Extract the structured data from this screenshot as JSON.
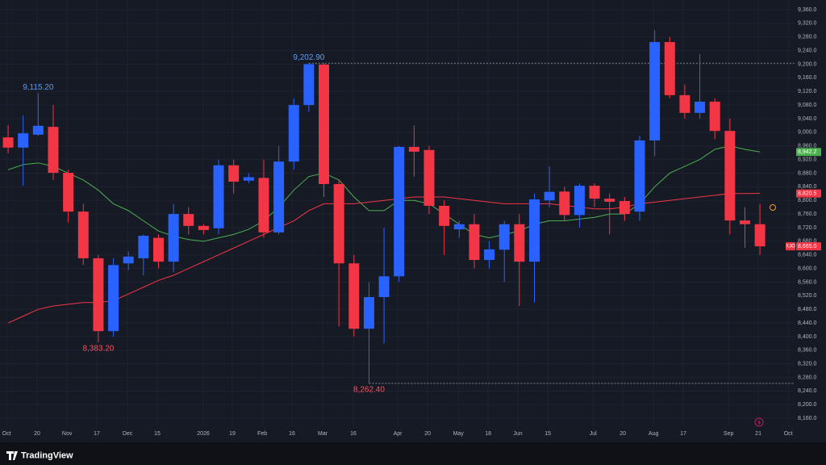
{
  "chart_data": {
    "type": "candlestick",
    "symbol": "XJO",
    "branding": "TradingView",
    "up_color": "#2962ff",
    "down_color": "#f23645",
    "grid": true,
    "x": [
      0,
      1,
      2,
      3,
      4,
      5,
      6,
      7,
      8,
      9,
      10,
      11,
      12,
      13,
      14,
      15,
      16,
      17,
      18,
      19,
      20,
      21,
      22,
      23,
      24,
      25,
      26,
      27,
      28,
      29,
      30,
      31,
      32,
      33,
      34,
      35,
      36,
      37,
      38,
      39,
      40,
      41,
      42,
      43,
      44,
      45,
      46,
      47,
      48,
      49,
      50
    ],
    "open": [
      8985,
      8955,
      8993,
      9016,
      8881,
      8767,
      8630,
      8416,
      8615,
      8630,
      8690,
      8620,
      8760,
      8725,
      8718,
      8903,
      8858,
      8866,
      8706,
      8914,
      9080,
      9199,
      8848,
      8615,
      8423,
      8516,
      8577,
      8957,
      8948,
      8784,
      8715,
      8730,
      8625,
      8655,
      8730,
      8620,
      8800,
      8826,
      8757,
      8843,
      8805,
      8798,
      8767,
      8976,
      9265,
      9109,
      9057,
      9090,
      9004,
      8741,
      8730
    ],
    "high": [
      9021,
      9050,
      9115.2,
      9080,
      8890,
      8790,
      8640,
      8630,
      8650,
      8700,
      8700,
      8790,
      8780,
      8730,
      8920,
      8920,
      8880,
      8920,
      8960,
      9100,
      9202.9,
      9202.9,
      8860,
      8640,
      8560,
      8720,
      8960,
      9020,
      8960,
      8800,
      8740,
      8760,
      8680,
      8740,
      8760,
      8820,
      8900,
      8840,
      8850,
      8850,
      8820,
      8810,
      8990,
      9300,
      9280,
      9140,
      9230,
      9100,
      9040,
      8780,
      8790
    ],
    "low": [
      8938,
      8843,
      8990,
      8860,
      8735,
      8610,
      8383.2,
      8400,
      8595,
      8580,
      8600,
      8590,
      8700,
      8700,
      8700,
      8820,
      8850,
      8690,
      8700,
      8890,
      9060,
      8810,
      8430,
      8400,
      8262.4,
      8380,
      8560,
      8870,
      8760,
      8640,
      8690,
      8600,
      8600,
      8560,
      8490,
      8500,
      8780,
      8740,
      8720,
      8780,
      8700,
      8740,
      8740,
      8930,
      9100,
      9040,
      9040,
      8980,
      8700,
      8660,
      8640
    ],
    "close": [
      8955,
      8997,
      9019,
      8881,
      8767,
      8630,
      8416,
      8610,
      8635,
      8696,
      8620,
      8760,
      8725,
      8713,
      8903,
      8855,
      8868,
      8706,
      8914,
      9080,
      9200,
      8848,
      8615,
      8423,
      8516,
      8577,
      8957,
      8943,
      8784,
      8725,
      8730,
      8625,
      8656,
      8730,
      8620,
      8803,
      8825,
      8757,
      8843,
      8805,
      8796,
      8760,
      8976,
      9265,
      9109,
      9057,
      9090,
      9004,
      8741,
      8730,
      8665
    ],
    "close_label": "8,665.0",
    "lines": [
      {
        "color": "#4caf50",
        "last_label": "8,942.2",
        "values": [
          8890,
          8905,
          8910,
          8900,
          8880,
          8860,
          8830,
          8790,
          8770,
          8740,
          8710,
          8695,
          8685,
          8680,
          8690,
          8700,
          8715,
          8740,
          8780,
          8830,
          8870,
          8880,
          8860,
          8810,
          8770,
          8770,
          8800,
          8800,
          8790,
          8760,
          8730,
          8700,
          8690,
          8700,
          8710,
          8730,
          8740,
          8740,
          8745,
          8750,
          8760,
          8760,
          8790,
          8840,
          8880,
          8900,
          8920,
          8950,
          8960,
          8950,
          8942.2
        ]
      },
      {
        "color": "#f23645",
        "last_label": "8,820.5",
        "values": [
          8440,
          8460,
          8480,
          8490,
          8495,
          8500,
          8500,
          8505,
          8525,
          8545,
          8565,
          8580,
          8600,
          8620,
          8640,
          8660,
          8680,
          8700,
          8720,
          8740,
          8770,
          8790,
          8790,
          8790,
          8795,
          8800,
          8805,
          8810,
          8810,
          8810,
          8805,
          8800,
          8795,
          8790,
          8790,
          8790,
          8790,
          8785,
          8780,
          8775,
          8775,
          8780,
          8790,
          8795,
          8800,
          8805,
          8810,
          8815,
          8820,
          8820,
          8820.5
        ]
      }
    ],
    "annotations": [
      {
        "index": 2,
        "value": 9115.2,
        "label": "9,115.20",
        "color": "#5b9cf6",
        "extended": false
      },
      {
        "index": 20,
        "value": 9202.9,
        "label": "9,202.90",
        "color": "#5b9cf6",
        "extended": true
      },
      {
        "index": 6,
        "value": 8383.2,
        "label": "8,383.20",
        "color": "#f7525f",
        "extended": false
      },
      {
        "index": 24,
        "value": 8262.4,
        "label": "8,262.40",
        "color": "#f7525f",
        "extended": true
      }
    ],
    "xlim": [
      -0.54,
      52.3
    ],
    "xticks": [
      {
        "value": -0.1,
        "label": "Oct"
      },
      {
        "value": 1.93,
        "label": "20"
      },
      {
        "value": 3.92,
        "label": "Nov"
      },
      {
        "value": 5.9,
        "label": "17"
      },
      {
        "value": 7.94,
        "label": "Dec"
      },
      {
        "value": 9.92,
        "label": "15"
      },
      {
        "value": 12.98,
        "label": "2026"
      },
      {
        "value": 14.91,
        "label": "19"
      },
      {
        "value": 16.9,
        "label": "Feb"
      },
      {
        "value": 18.88,
        "label": "16"
      },
      {
        "value": 20.92,
        "label": "Mar"
      },
      {
        "value": 22.96,
        "label": "16"
      },
      {
        "value": 25.91,
        "label": "Apr"
      },
      {
        "value": 27.9,
        "label": "20"
      },
      {
        "value": 29.94,
        "label": "May"
      },
      {
        "value": 31.92,
        "label": "18"
      },
      {
        "value": 33.9,
        "label": "Jun"
      },
      {
        "value": 35.89,
        "label": "15"
      },
      {
        "value": 38.9,
        "label": "Jul"
      },
      {
        "value": 40.88,
        "label": "20"
      },
      {
        "value": 42.92,
        "label": "Aug"
      },
      {
        "value": 44.9,
        "label": "17"
      },
      {
        "value": 47.91,
        "label": "Sep"
      },
      {
        "value": 49.89,
        "label": "21"
      },
      {
        "value": 51.88,
        "label": "Oct"
      }
    ],
    "ylim": [
      8139,
      9388.5
    ],
    "yticks": [
      {
        "value": 8160,
        "label": "8,160.0"
      },
      {
        "value": 8200,
        "label": "8,200.0"
      },
      {
        "value": 8240,
        "label": "8,240.0"
      },
      {
        "value": 8280,
        "label": "8,280.0"
      },
      {
        "value": 8320,
        "label": "8,320.0"
      },
      {
        "value": 8360,
        "label": "8,360.0"
      },
      {
        "value": 8400,
        "label": "8,400.0"
      },
      {
        "value": 8440,
        "label": "8,440.0"
      },
      {
        "value": 8480,
        "label": "8,480.0"
      },
      {
        "value": 8520,
        "label": "8,520.0"
      },
      {
        "value": 8560,
        "label": "8,560.0"
      },
      {
        "value": 8600,
        "label": "8,600.0"
      },
      {
        "value": 8640,
        "label": "8,640.0"
      },
      {
        "value": 8680,
        "label": "8,680.0"
      },
      {
        "value": 8720,
        "label": "8,720.0"
      },
      {
        "value": 8760,
        "label": "8,760.0"
      },
      {
        "value": 8800,
        "label": "8,800.0"
      },
      {
        "value": 8840,
        "label": "8,840.0"
      },
      {
        "value": 8880,
        "label": "8,880.0"
      },
      {
        "value": 8920,
        "label": "8,920.0"
      },
      {
        "value": 8960,
        "label": "8,960.0"
      },
      {
        "value": 9000,
        "label": "9,000.0"
      },
      {
        "value": 9040,
        "label": "9,040.0"
      },
      {
        "value": 9080,
        "label": "9,080.0"
      },
      {
        "value": 9120,
        "label": "9,120.0"
      },
      {
        "value": 9160,
        "label": "9,160.0"
      },
      {
        "value": 9200,
        "label": "9,200.0"
      },
      {
        "value": 9240,
        "label": "9,240.0"
      },
      {
        "value": 9280,
        "label": "9,280.0"
      },
      {
        "value": 9320,
        "label": "9,320.0"
      },
      {
        "value": 9360,
        "label": "9,360.0"
      }
    ]
  }
}
